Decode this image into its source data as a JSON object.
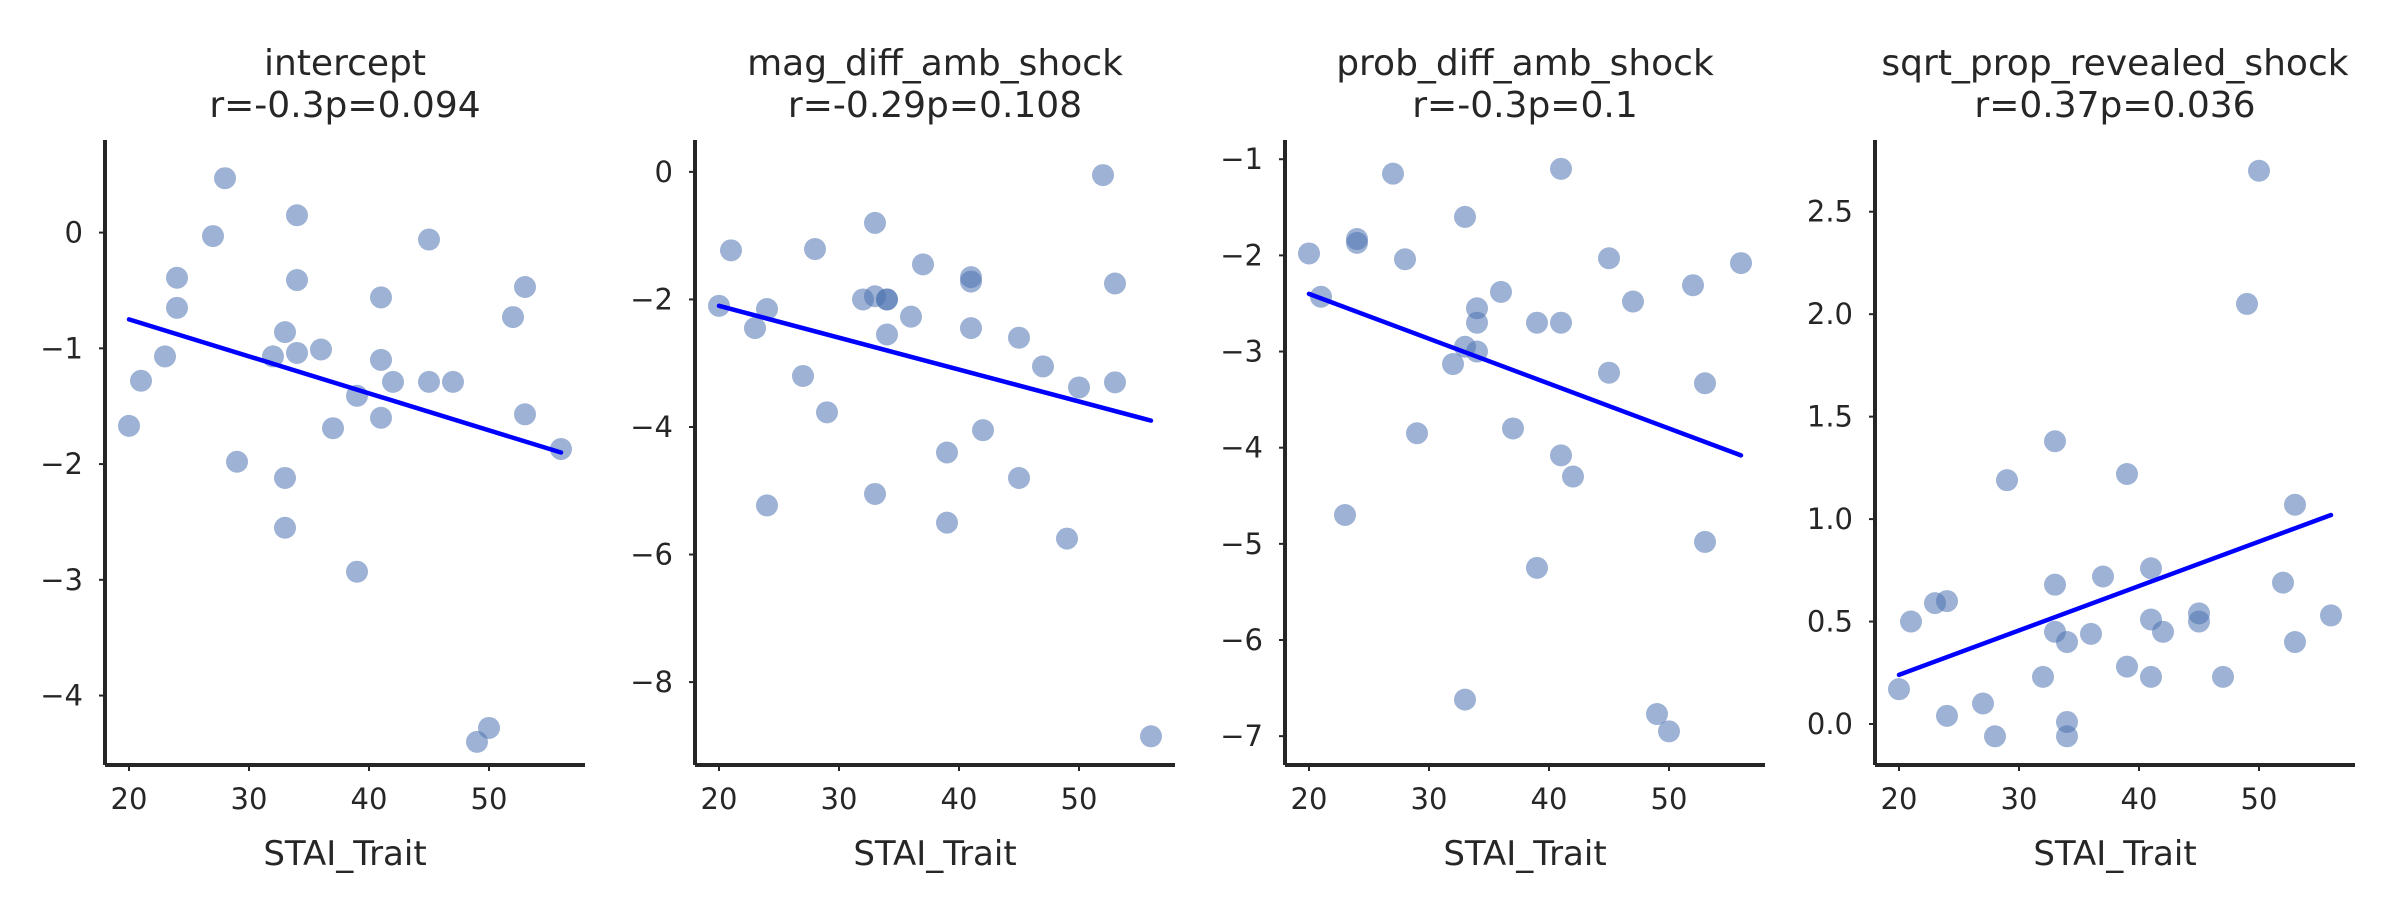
{
  "colors": {
    "points": "#4c72b0",
    "fit_line": "#0000ff",
    "axis": "#262626"
  },
  "chart_data": [
    {
      "type": "scatter",
      "title": "intercept",
      "subtitle": "r=-0.3p=0.094",
      "xlabel": "STAI_Trait",
      "ylabel": "",
      "xlim": [
        18,
        58
      ],
      "ylim": [
        -4.6,
        0.8
      ],
      "xticks": [
        20,
        30,
        40,
        50
      ],
      "yticks": [
        0,
        -1,
        -2,
        -3,
        -4
      ],
      "tick_labels_x": [
        "20",
        "30",
        "40",
        "50"
      ],
      "tick_labels_y": [
        "0",
        "−1",
        "−2",
        "−3",
        "−4"
      ],
      "points": [
        [
          20,
          -1.67
        ],
        [
          21,
          -1.28
        ],
        [
          23,
          -1.07
        ],
        [
          24,
          -0.65
        ],
        [
          24,
          -0.39
        ],
        [
          27,
          -0.03
        ],
        [
          28,
          0.47
        ],
        [
          29,
          -1.98
        ],
        [
          32,
          -1.07
        ],
        [
          33,
          -0.86
        ],
        [
          33,
          -2.12
        ],
        [
          33,
          -2.55
        ],
        [
          34,
          0.15
        ],
        [
          34,
          -0.41
        ],
        [
          34,
          -1.04
        ],
        [
          36,
          -1.01
        ],
        [
          37,
          -1.69
        ],
        [
          39,
          -1.41
        ],
        [
          39,
          -2.93
        ],
        [
          41,
          -0.56
        ],
        [
          41,
          -1.1
        ],
        [
          41,
          -1.6
        ],
        [
          42,
          -1.29
        ],
        [
          45,
          -0.06
        ],
        [
          45,
          -1.29
        ],
        [
          47,
          -1.29
        ],
        [
          49,
          -4.4
        ],
        [
          50,
          -4.28
        ],
        [
          52,
          -0.73
        ],
        [
          53,
          -0.47
        ],
        [
          53,
          -1.57
        ],
        [
          56,
          -1.87
        ]
      ],
      "fit": {
        "x": [
          20,
          56
        ],
        "y": [
          -0.75,
          -1.9
        ]
      }
    },
    {
      "type": "scatter",
      "title": "mag_diff_amb_shock",
      "subtitle": "r=-0.29p=0.108",
      "xlabel": "STAI_Trait",
      "ylabel": "",
      "xlim": [
        18,
        58
      ],
      "ylim": [
        -9.3,
        0.5
      ],
      "xticks": [
        20,
        30,
        40,
        50
      ],
      "yticks": [
        0,
        -2,
        -4,
        -6,
        -8
      ],
      "tick_labels_x": [
        "20",
        "30",
        "40",
        "50"
      ],
      "tick_labels_y": [
        "0",
        "−2",
        "−4",
        "−6",
        "−8"
      ],
      "points": [
        [
          20,
          -2.1
        ],
        [
          21,
          -1.23
        ],
        [
          23,
          -2.45
        ],
        [
          24,
          -2.15
        ],
        [
          24,
          -5.23
        ],
        [
          27,
          -3.2
        ],
        [
          28,
          -1.21
        ],
        [
          29,
          -3.77
        ],
        [
          32,
          -2.0
        ],
        [
          33,
          -0.8
        ],
        [
          33,
          -1.95
        ],
        [
          33,
          -5.05
        ],
        [
          34,
          -2.0
        ],
        [
          34,
          -2.0
        ],
        [
          34,
          -2.55
        ],
        [
          36,
          -2.27
        ],
        [
          37,
          -1.45
        ],
        [
          39,
          -4.4
        ],
        [
          39,
          -5.5
        ],
        [
          41,
          -1.65
        ],
        [
          41,
          -1.72
        ],
        [
          41,
          -2.45
        ],
        [
          42,
          -4.05
        ],
        [
          45,
          -2.6
        ],
        [
          45,
          -4.8
        ],
        [
          47,
          -3.05
        ],
        [
          49,
          -5.75
        ],
        [
          50,
          -3.38
        ],
        [
          52,
          -0.05
        ],
        [
          53,
          -1.75
        ],
        [
          53,
          -3.3
        ],
        [
          56,
          -8.85
        ]
      ],
      "fit": {
        "x": [
          20,
          56
        ],
        "y": [
          -2.1,
          -3.9
        ]
      }
    },
    {
      "type": "scatter",
      "title": "prob_diff_amb_shock",
      "subtitle": "r=-0.3p=0.1",
      "xlabel": "STAI_Trait",
      "ylabel": "",
      "xlim": [
        18,
        58
      ],
      "ylim": [
        -7.3,
        -0.8
      ],
      "xticks": [
        20,
        30,
        40,
        50
      ],
      "yticks": [
        -1,
        -2,
        -3,
        -4,
        -5,
        -6,
        -7
      ],
      "tick_labels_x": [
        "20",
        "30",
        "40",
        "50"
      ],
      "tick_labels_y": [
        "−1",
        "−2",
        "−3",
        "−4",
        "−5",
        "−6",
        "−7"
      ],
      "points": [
        [
          20,
          -1.98
        ],
        [
          21,
          -2.43
        ],
        [
          23,
          -4.7
        ],
        [
          24,
          -1.83
        ],
        [
          24,
          -1.87
        ],
        [
          27,
          -1.15
        ],
        [
          28,
          -2.04
        ],
        [
          29,
          -3.85
        ],
        [
          32,
          -3.13
        ],
        [
          33,
          -1.6
        ],
        [
          33,
          -2.95
        ],
        [
          33,
          -6.62
        ],
        [
          34,
          -2.55
        ],
        [
          34,
          -2.7
        ],
        [
          34,
          -3.0
        ],
        [
          36,
          -2.38
        ],
        [
          37,
          -3.8
        ],
        [
          39,
          -2.7
        ],
        [
          39,
          -5.25
        ],
        [
          41,
          -1.1
        ],
        [
          41,
          -2.7
        ],
        [
          41,
          -4.08
        ],
        [
          42,
          -4.3
        ],
        [
          45,
          -2.03
        ],
        [
          45,
          -3.22
        ],
        [
          47,
          -2.48
        ],
        [
          49,
          -6.77
        ],
        [
          50,
          -6.95
        ],
        [
          52,
          -2.31
        ],
        [
          53,
          -3.33
        ],
        [
          53,
          -4.98
        ],
        [
          56,
          -2.08
        ]
      ],
      "fit": {
        "x": [
          20,
          56
        ],
        "y": [
          -2.4,
          -4.08
        ]
      }
    },
    {
      "type": "scatter",
      "title": "sqrt_prop_revealed_shock",
      "subtitle": "r=0.37p=0.036",
      "xlabel": "STAI_Trait",
      "ylabel": "",
      "xlim": [
        18,
        58
      ],
      "ylim": [
        -0.2,
        2.85
      ],
      "xticks": [
        20,
        30,
        40,
        50
      ],
      "yticks": [
        0.0,
        0.5,
        1.0,
        1.5,
        2.0,
        2.5
      ],
      "tick_labels_x": [
        "20",
        "30",
        "40",
        "50"
      ],
      "tick_labels_y": [
        "0.0",
        "0.5",
        "1.0",
        "1.5",
        "2.0",
        "2.5"
      ],
      "points": [
        [
          20,
          0.17
        ],
        [
          21,
          0.5
        ],
        [
          23,
          0.59
        ],
        [
          24,
          0.6
        ],
        [
          24,
          0.04
        ],
        [
          27,
          0.1
        ],
        [
          28,
          -0.06
        ],
        [
          29,
          1.19
        ],
        [
          32,
          0.23
        ],
        [
          33,
          0.45
        ],
        [
          33,
          0.68
        ],
        [
          33,
          1.38
        ],
        [
          34,
          0.01
        ],
        [
          34,
          -0.06
        ],
        [
          34,
          0.4
        ],
        [
          36,
          0.44
        ],
        [
          37,
          0.72
        ],
        [
          39,
          1.22
        ],
        [
          39,
          0.28
        ],
        [
          41,
          0.76
        ],
        [
          41,
          0.51
        ],
        [
          41,
          0.23
        ],
        [
          42,
          0.45
        ],
        [
          45,
          0.54
        ],
        [
          45,
          0.5
        ],
        [
          47,
          0.23
        ],
        [
          49,
          2.05
        ],
        [
          50,
          2.7
        ],
        [
          52,
          0.69
        ],
        [
          53,
          0.4
        ],
        [
          53,
          1.07
        ],
        [
          56,
          0.53
        ]
      ],
      "fit": {
        "x": [
          20,
          56
        ],
        "y": [
          0.24,
          1.02
        ]
      }
    }
  ]
}
